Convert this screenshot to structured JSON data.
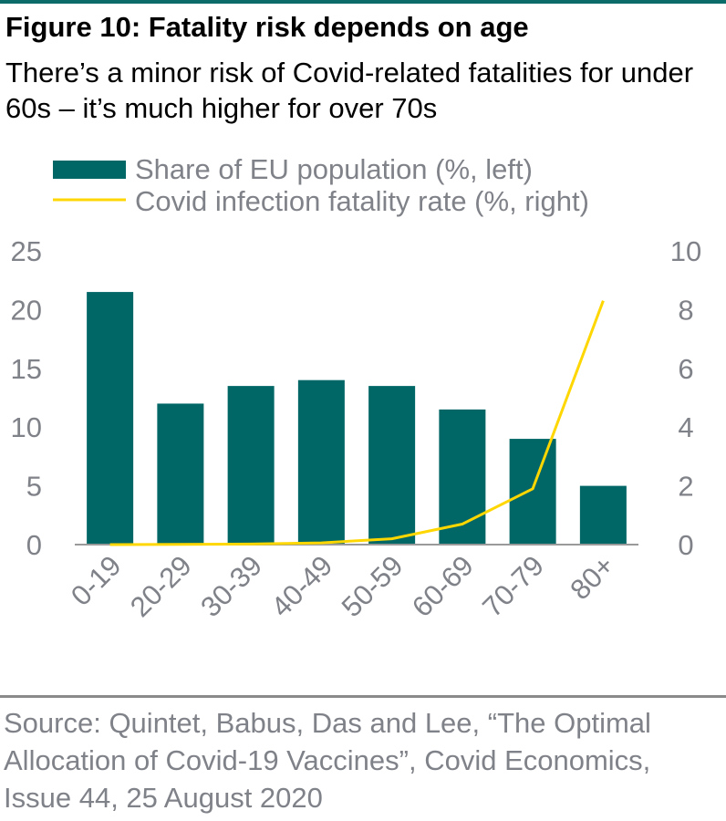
{
  "header": {
    "title": "Figure 10: Fatality risk depends on age",
    "subtitle": "There’s a minor risk of Covid-related fatalities for under 60s – it’s much higher for over 70s"
  },
  "source": "Source: Quintet, Babus, Das and Lee, “The Optimal Allocation of Covid-19 Vaccines”, Covid Economics, Issue 44, 25 August 2020",
  "colors": {
    "bar": "#006666",
    "line": "#FFD700",
    "axis_text": "#808289",
    "top_rule": "#0b6b68"
  },
  "chart_data": {
    "type": "bar",
    "categories": [
      "0-19",
      "20-29",
      "30-39",
      "40-49",
      "50-59",
      "60-69",
      "70-79",
      "80+"
    ],
    "series": [
      {
        "name": "Share of EU population (%, left)",
        "type": "bar",
        "axis": "left",
        "values": [
          21.5,
          12.0,
          13.5,
          14.0,
          13.5,
          11.5,
          9.0,
          5.0
        ]
      },
      {
        "name": "Covid infection fatality rate (%, right)",
        "type": "line",
        "axis": "right",
        "values": [
          0.0,
          0.01,
          0.02,
          0.06,
          0.2,
          0.7,
          1.9,
          8.3
        ]
      }
    ],
    "left_axis": {
      "ylim": [
        0,
        25
      ],
      "ticks": [
        "0",
        "5",
        "10",
        "15",
        "20",
        "25"
      ]
    },
    "right_axis": {
      "ylim": [
        0,
        10
      ],
      "ticks": [
        "0",
        "2",
        "4",
        "6",
        "8",
        "10"
      ]
    },
    "legend_position": "top",
    "grid": false
  }
}
